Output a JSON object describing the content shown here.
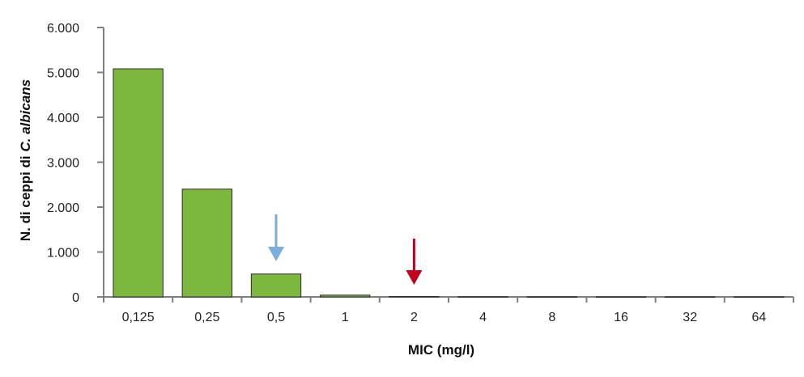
{
  "chart_data": {
    "type": "bar",
    "categories": [
      "0,125",
      "0,25",
      "0,5",
      "1",
      "2",
      "4",
      "8",
      "16",
      "32",
      "64"
    ],
    "values": [
      5080,
      2400,
      510,
      40,
      8,
      5,
      3,
      2,
      2,
      2
    ],
    "ylim": [
      0,
      6000
    ],
    "yticks": [
      0,
      1000,
      2000,
      3000,
      4000,
      5000,
      6000
    ],
    "ytick_labels": [
      "0",
      "1.000",
      "2.000",
      "3.000",
      "4.000",
      "5.000",
      "6.000"
    ],
    "xlabel": "MIC (mg/l)",
    "ylabel_prefix": "N. di ceppi di ",
    "ylabel_italic": "C. albicans",
    "bar_color": "#7cb83d",
    "bar_stroke": "#2b2b2b",
    "grid": false,
    "annotations": [
      {
        "type": "arrow",
        "category": "0,5",
        "color": "#7aaee0"
      },
      {
        "type": "arrow",
        "category": "2",
        "color": "#c0001d"
      }
    ]
  }
}
